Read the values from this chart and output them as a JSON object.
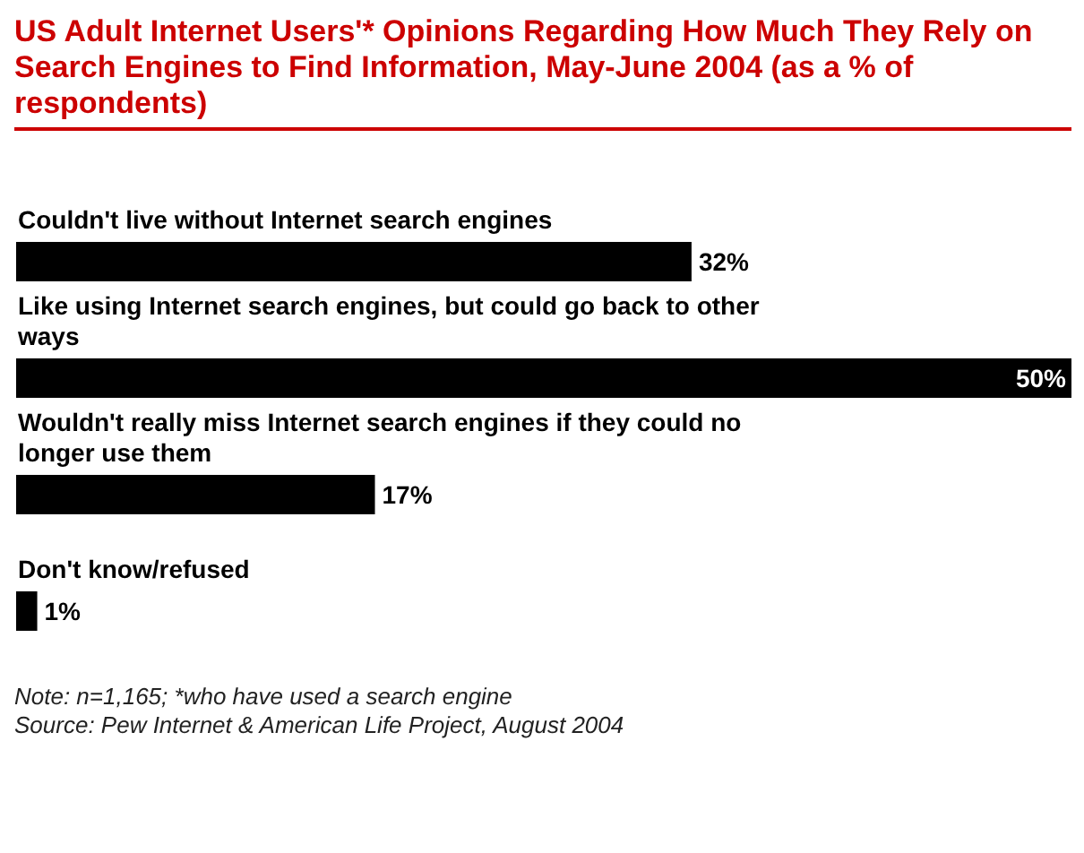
{
  "chart_data": {
    "type": "bar",
    "orientation": "horizontal",
    "title": "US Adult Internet Users'* Opinions Regarding How Much They Rely on Search Engines to Find Information, May-June 2004 (as a % of respondents)",
    "categories": [
      "Couldn't live without Internet search engines",
      "Like using Internet search engines, but could go back to other ways",
      "Wouldn't really miss Internet search engines if they could no longer use them",
      "Don't know/refused"
    ],
    "values": [
      32,
      50,
      17,
      1
    ],
    "value_labels": [
      "32%",
      "50%",
      "17%",
      "1%"
    ],
    "color": "#000000",
    "annotations": [
      "Note: n=1,165; *who have used a search engine",
      "Source: Pew Internet & American Life Project, August 2004"
    ]
  }
}
